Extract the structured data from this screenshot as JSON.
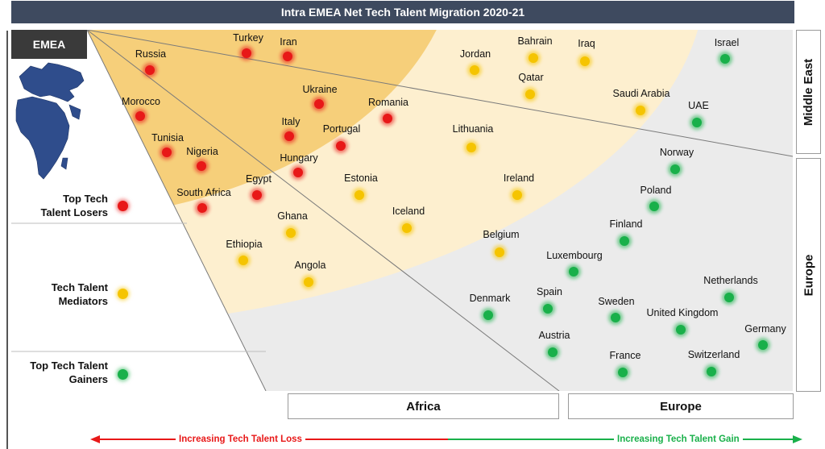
{
  "title": "Intra EMEA Net Tech Talent Migration 2020-21",
  "region_tag": "EMEA",
  "colors": {
    "loser": "#e81818",
    "mediator": "#f5c400",
    "gainer": "#19b04a",
    "header_bg": "#3e4a5f",
    "zone_inner": "#f6cf7a",
    "zone_outer": "#fdefcf",
    "zone_gray": "#ebebeb"
  },
  "legend": [
    {
      "label_line1": "Top Tech",
      "label_line2": "Talent Losers",
      "category": "loser"
    },
    {
      "label_line1": "Tech Talent",
      "label_line2": "Mediators",
      "category": "mediator"
    },
    {
      "label_line1": "Top Tech Talent",
      "label_line2": "Gainers",
      "category": "gainer"
    }
  ],
  "regions": {
    "middle_east": "Middle East",
    "europe_side": "Europe",
    "africa": "Africa",
    "europe_bottom": "Europe"
  },
  "axis": {
    "loss_label": "Increasing Tech Talent Loss",
    "gain_label": "Increasing Tech Talent Gain"
  },
  "countries": [
    {
      "name": "Turkey",
      "category": "loser"
    },
    {
      "name": "Iran",
      "category": "loser"
    },
    {
      "name": "Russia",
      "category": "loser"
    },
    {
      "name": "Ukraine",
      "category": "loser"
    },
    {
      "name": "Romania",
      "category": "loser"
    },
    {
      "name": "Morocco",
      "category": "loser"
    },
    {
      "name": "Italy",
      "category": "loser"
    },
    {
      "name": "Portugal",
      "category": "loser"
    },
    {
      "name": "Tunisia",
      "category": "loser"
    },
    {
      "name": "Nigeria",
      "category": "loser"
    },
    {
      "name": "Hungary",
      "category": "loser"
    },
    {
      "name": "Egypt",
      "category": "loser"
    },
    {
      "name": "South Africa",
      "category": "loser"
    },
    {
      "name": "Jordan",
      "category": "mediator"
    },
    {
      "name": "Bahrain",
      "category": "mediator"
    },
    {
      "name": "Iraq",
      "category": "mediator"
    },
    {
      "name": "Qatar",
      "category": "mediator"
    },
    {
      "name": "Saudi Arabia",
      "category": "mediator"
    },
    {
      "name": "Lithuania",
      "category": "mediator"
    },
    {
      "name": "Estonia",
      "category": "mediator"
    },
    {
      "name": "Ireland",
      "category": "mediator"
    },
    {
      "name": "Ghana",
      "category": "mediator"
    },
    {
      "name": "Iceland",
      "category": "mediator"
    },
    {
      "name": "Ethiopia",
      "category": "mediator"
    },
    {
      "name": "Belgium",
      "category": "mediator"
    },
    {
      "name": "Angola",
      "category": "mediator"
    },
    {
      "name": "Israel",
      "category": "gainer"
    },
    {
      "name": "UAE",
      "category": "gainer"
    },
    {
      "name": "Norway",
      "category": "gainer"
    },
    {
      "name": "Poland",
      "category": "gainer"
    },
    {
      "name": "Finland",
      "category": "gainer"
    },
    {
      "name": "Luxembourg",
      "category": "gainer"
    },
    {
      "name": "Netherlands",
      "category": "gainer"
    },
    {
      "name": "Denmark",
      "category": "gainer"
    },
    {
      "name": "Spain",
      "category": "gainer"
    },
    {
      "name": "Sweden",
      "category": "gainer"
    },
    {
      "name": "United Kingdom",
      "category": "gainer"
    },
    {
      "name": "Germany",
      "category": "gainer"
    },
    {
      "name": "Austria",
      "category": "gainer"
    },
    {
      "name": "France",
      "category": "gainer"
    },
    {
      "name": "Switzerland",
      "category": "gainer"
    }
  ]
}
